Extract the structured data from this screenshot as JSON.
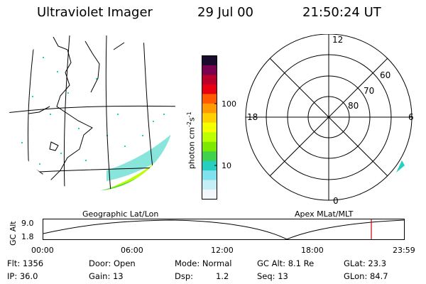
{
  "header": {
    "instrument": "Ultraviolet Imager",
    "date": "29 Jul 00",
    "time": "21:50:24 UT"
  },
  "colorbar": {
    "unit_label": "photon cm",
    "unit_exp1": "-2",
    "unit_s": "s",
    "unit_exp2": "-1",
    "tick_100": "100",
    "tick_10": "10",
    "colors": [
      "#1a0a2e",
      "#7a0050",
      "#b8002a",
      "#e80010",
      "#ff5a00",
      "#ff9a00",
      "#ffd000",
      "#f4ff00",
      "#bcff00",
      "#7de800",
      "#3fd24a",
      "#26cfc0",
      "#7fe2ee",
      "#c6eef6",
      "#f2f8fb"
    ]
  },
  "polar": {
    "label_12": "12",
    "label_18": "18",
    "label_6": "6",
    "label_0": "0",
    "label_60": "60",
    "label_70": "70",
    "label_80": "80"
  },
  "map_caption": "Geographic Lat/Lon",
  "polar_caption": "Apex MLat/MLT",
  "timeline": {
    "ylabel": "GC Alt",
    "ytick_top": "9.0",
    "ytick_bottom": "1.8",
    "xticks": [
      "00:00",
      "06:00",
      "12:00",
      "18:00",
      "23:59"
    ],
    "marker_color": "#cc0000"
  },
  "info": {
    "flt": "Flt: 1356",
    "ip": "IP: 36.0",
    "door": "Door: Open",
    "gain": "Gain: 13",
    "mode": "Mode: Normal",
    "dsp_label": "Dsp:",
    "dsp_value": "1.2",
    "gcalt": "GC Alt: 8.1 Re",
    "seq": "Seq: 13",
    "glat": "GLat:  23.3",
    "glon": "GLon:  84.7"
  }
}
